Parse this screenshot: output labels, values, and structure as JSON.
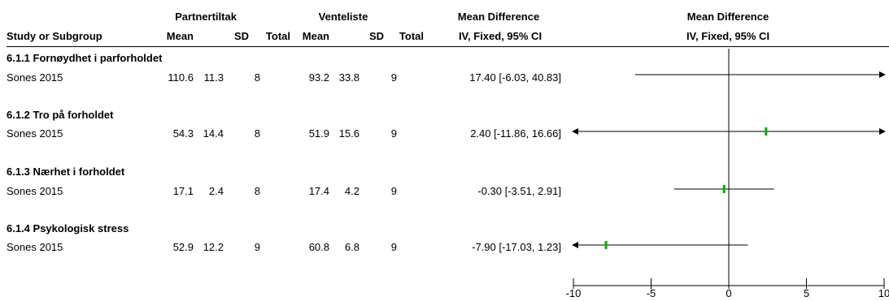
{
  "header": {
    "group1": "Partnertiltak",
    "group2": "Venteliste",
    "md_title": "Mean Difference",
    "md_sub": "IV, Fixed, 95% CI",
    "plot_title": "Mean Difference",
    "plot_sub": "IV, Fixed, 95% CI",
    "study_col": "Study or Subgroup",
    "mean1": "Mean",
    "sd1": "SD",
    "total1": "Total",
    "mean2": "Mean",
    "sd2": "SD",
    "total2": "Total"
  },
  "subgroups": [
    {
      "title": "6.1.1 Fornøydhet i parforholdet",
      "study": "Sones 2015",
      "m1": "110.6",
      "sd1": "11.3",
      "n1": "8",
      "m2": "93.2",
      "sd2": "33.8",
      "n2": "9",
      "md": "17.40 [-6.03, 40.83]"
    },
    {
      "title": "6.1.2 Tro på forholdet",
      "study": "Sones 2015",
      "m1": "54.3",
      "sd1": "14.4",
      "n1": "8",
      "m2": "51.9",
      "sd2": "15.6",
      "n2": "9",
      "md": "2.40 [-11.86, 16.66]"
    },
    {
      "title": "6.1.3 Nærhet i forholdet",
      "study": "Sones 2015",
      "m1": "17.1",
      "sd1": "2.4",
      "n1": "8",
      "m2": "17.4",
      "sd2": "4.2",
      "n2": "9",
      "md": "-0.30 [-3.51, 2.91]"
    },
    {
      "title": "6.1.4 Psykologisk stress",
      "study": "Sones 2015",
      "m1": "52.9",
      "sd1": "12.2",
      "n1": "9",
      "m2": "60.8",
      "sd2": "6.8",
      "n2": "9",
      "md": "-7.90 [-17.03, 1.23]"
    }
  ],
  "chart_data": {
    "type": "forest",
    "xlim": [
      -10,
      10
    ],
    "xticks": [
      "-10",
      "-5",
      "0",
      "5",
      "10"
    ],
    "xtick_values": [
      -10,
      -5,
      0,
      5,
      10
    ],
    "point_color": "#00b000",
    "line_color": "#000000",
    "studies": [
      {
        "label": "Sones 2015",
        "estimate": 17.4,
        "lower": -6.03,
        "upper": 40.83
      },
      {
        "label": "Sones 2015",
        "estimate": 2.4,
        "lower": -11.86,
        "upper": 16.66
      },
      {
        "label": "Sones 2015",
        "estimate": -0.3,
        "lower": -3.51,
        "upper": 2.91
      },
      {
        "label": "Sones 2015",
        "estimate": -7.9,
        "lower": -17.03,
        "upper": 1.23
      }
    ]
  }
}
